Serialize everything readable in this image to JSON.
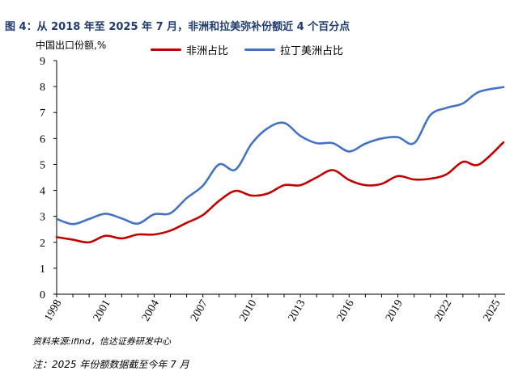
{
  "title": "图 4：从 2018 年至 2025 年 7 月，非洲和拉美弥补份额近 4 个百分点",
  "source": "资料来源:ifind，信达证券研发中心",
  "note": "注：2025 年份额数据截至今年 7 月",
  "chart_data": {
    "type": "line",
    "title": "",
    "xlabel": "",
    "ylabel": "中国出口份额,%",
    "ylim": [
      0,
      9
    ],
    "xlim": [
      1998,
      2025.6
    ],
    "yticks": [
      "0",
      "1",
      "2",
      "3",
      "4",
      "5",
      "6",
      "7",
      "8",
      "9"
    ],
    "xticks": [
      "1998",
      "2001",
      "2004",
      "2007",
      "2010",
      "2013",
      "2016",
      "2019",
      "2022",
      "2025"
    ],
    "legend_position": "top",
    "series": [
      {
        "name": "非洲占比",
        "color": "#c00000",
        "x": [
          1998,
          1999,
          2000,
          2001,
          2002,
          2003,
          2004,
          2005,
          2006,
          2007,
          2008,
          2009,
          2010,
          2011,
          2012,
          2013,
          2014,
          2015,
          2016,
          2017,
          2018,
          2019,
          2020,
          2021,
          2022,
          2023,
          2024,
          2025.5
        ],
        "values": [
          2.2,
          2.1,
          2.0,
          2.25,
          2.15,
          2.3,
          2.3,
          2.45,
          2.75,
          3.05,
          3.6,
          3.98,
          3.8,
          3.88,
          4.2,
          4.2,
          4.5,
          4.78,
          4.4,
          4.2,
          4.25,
          4.55,
          4.42,
          4.45,
          4.62,
          5.1,
          5.0,
          5.85
        ]
      },
      {
        "name": "拉丁美洲占比",
        "color": "#4472c4",
        "x": [
          1998,
          1999,
          2000,
          2001,
          2002,
          2003,
          2004,
          2005,
          2006,
          2007,
          2008,
          2009,
          2010,
          2011,
          2012,
          2013,
          2014,
          2015,
          2016,
          2017,
          2018,
          2019,
          2020,
          2021,
          2022,
          2023,
          2024,
          2025.5
        ],
        "values": [
          2.9,
          2.7,
          2.9,
          3.1,
          2.92,
          2.72,
          3.08,
          3.12,
          3.7,
          4.18,
          5.0,
          4.8,
          5.8,
          6.4,
          6.6,
          6.1,
          5.82,
          5.82,
          5.5,
          5.8,
          6.0,
          6.05,
          5.82,
          6.9,
          7.18,
          7.35,
          7.8,
          7.98
        ]
      }
    ]
  }
}
